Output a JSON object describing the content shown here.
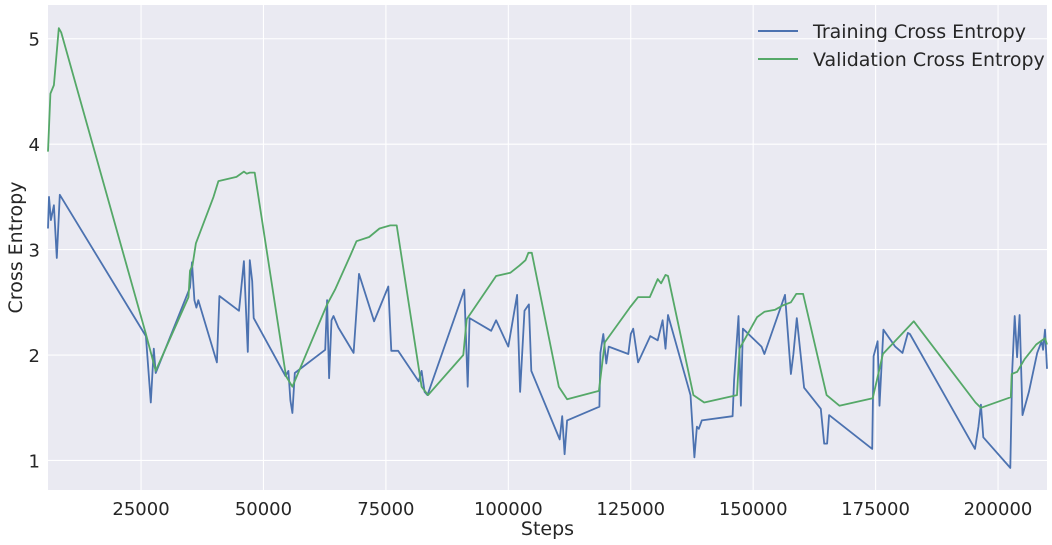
{
  "chart_data": {
    "type": "line",
    "title": "",
    "xlabel": "Steps",
    "ylabel": "Cross Entropy",
    "xlim": [
      6000,
      210000
    ],
    "ylim": [
      0.72,
      5.32
    ],
    "xticks": [
      25000,
      50000,
      75000,
      100000,
      125000,
      150000,
      175000,
      200000
    ],
    "yticks": [
      1,
      2,
      3,
      4,
      5
    ],
    "grid": true,
    "legend_position": "top-right",
    "colors": {
      "background": "#eaeaf2",
      "grid": "#ffffff"
    },
    "series": [
      {
        "name": "Training Cross Entropy",
        "color": "#4c72b0",
        "points": [
          [
            6000,
            3.2
          ],
          [
            6200,
            3.5
          ],
          [
            6600,
            3.28
          ],
          [
            7200,
            3.42
          ],
          [
            7800,
            2.92
          ],
          [
            8400,
            3.52
          ],
          [
            26000,
            2.18
          ],
          [
            27000,
            1.55
          ],
          [
            27600,
            2.06
          ],
          [
            28000,
            1.83
          ],
          [
            35000,
            2.64
          ],
          [
            35400,
            2.88
          ],
          [
            35900,
            2.52
          ],
          [
            36300,
            2.45
          ],
          [
            36700,
            2.52
          ],
          [
            40500,
            1.93
          ],
          [
            41000,
            2.56
          ],
          [
            45000,
            2.42
          ],
          [
            46000,
            2.89
          ],
          [
            46800,
            2.03
          ],
          [
            47200,
            2.9
          ],
          [
            47700,
            2.7
          ],
          [
            48000,
            2.35
          ],
          [
            54500,
            1.8
          ],
          [
            55100,
            1.85
          ],
          [
            55500,
            1.57
          ],
          [
            55900,
            1.45
          ],
          [
            56400,
            1.83
          ],
          [
            62600,
            2.05
          ],
          [
            63000,
            2.52
          ],
          [
            63400,
            1.78
          ],
          [
            63900,
            2.33
          ],
          [
            64300,
            2.37
          ],
          [
            65300,
            2.26
          ],
          [
            68400,
            2.02
          ],
          [
            69500,
            2.77
          ],
          [
            72600,
            2.32
          ],
          [
            75500,
            2.65
          ],
          [
            76100,
            2.04
          ],
          [
            77500,
            2.04
          ],
          [
            81700,
            1.75
          ],
          [
            82300,
            1.85
          ],
          [
            82900,
            1.65
          ],
          [
            83500,
            1.62
          ],
          [
            90500,
            2.55
          ],
          [
            91000,
            2.62
          ],
          [
            91700,
            1.7
          ],
          [
            92100,
            2.35
          ],
          [
            96500,
            2.23
          ],
          [
            97500,
            2.33
          ],
          [
            100000,
            2.08
          ],
          [
            101800,
            2.57
          ],
          [
            102400,
            1.65
          ],
          [
            103300,
            2.42
          ],
          [
            104200,
            2.48
          ],
          [
            104700,
            1.85
          ],
          [
            110500,
            1.2
          ],
          [
            111000,
            1.42
          ],
          [
            111500,
            1.06
          ],
          [
            112000,
            1.38
          ],
          [
            118600,
            1.51
          ],
          [
            118800,
            2.02
          ],
          [
            119400,
            2.2
          ],
          [
            120000,
            1.92
          ],
          [
            120500,
            2.08
          ],
          [
            124500,
            2.01
          ],
          [
            125000,
            2.2
          ],
          [
            125500,
            2.25
          ],
          [
            126500,
            1.93
          ],
          [
            129000,
            2.18
          ],
          [
            130500,
            2.14
          ],
          [
            131500,
            2.33
          ],
          [
            132100,
            2.06
          ],
          [
            132600,
            2.38
          ],
          [
            137200,
            1.62
          ],
          [
            138000,
            1.03
          ],
          [
            138500,
            1.32
          ],
          [
            138900,
            1.3
          ],
          [
            139500,
            1.38
          ],
          [
            145800,
            1.42
          ],
          [
            146100,
            1.76
          ],
          [
            147000,
            2.37
          ],
          [
            147500,
            1.52
          ],
          [
            147900,
            2.25
          ],
          [
            151700,
            2.08
          ],
          [
            152300,
            2.01
          ],
          [
            156500,
            2.57
          ],
          [
            157700,
            1.82
          ],
          [
            158200,
            2.0
          ],
          [
            158900,
            2.35
          ],
          [
            160400,
            1.69
          ],
          [
            163800,
            1.49
          ],
          [
            164500,
            1.16
          ],
          [
            165100,
            1.16
          ],
          [
            165500,
            1.43
          ],
          [
            174300,
            1.11
          ],
          [
            174600,
            1.99
          ],
          [
            175400,
            2.13
          ],
          [
            175800,
            1.52
          ],
          [
            176600,
            2.24
          ],
          [
            179000,
            2.08
          ],
          [
            180500,
            2.02
          ],
          [
            181600,
            2.21
          ],
          [
            182000,
            2.2
          ],
          [
            195300,
            1.11
          ],
          [
            196000,
            1.32
          ],
          [
            196500,
            1.53
          ],
          [
            197000,
            1.22
          ],
          [
            202500,
            0.93
          ],
          [
            202900,
            1.85
          ],
          [
            203400,
            2.37
          ],
          [
            203900,
            1.98
          ],
          [
            204400,
            2.38
          ],
          [
            205000,
            1.43
          ],
          [
            206300,
            1.65
          ],
          [
            208000,
            2.02
          ],
          [
            208900,
            2.13
          ],
          [
            209200,
            2.05
          ],
          [
            209600,
            2.24
          ],
          [
            210000,
            1.87
          ]
        ]
      },
      {
        "name": "Validation Cross Entropy",
        "color": "#55a868",
        "points": [
          [
            6000,
            3.93
          ],
          [
            6500,
            4.48
          ],
          [
            7200,
            4.56
          ],
          [
            8200,
            5.1
          ],
          [
            8700,
            5.06
          ],
          [
            26000,
            2.2
          ],
          [
            28000,
            1.85
          ],
          [
            34700,
            2.55
          ],
          [
            35000,
            2.8
          ],
          [
            35500,
            2.85
          ],
          [
            36200,
            3.06
          ],
          [
            39800,
            3.5
          ],
          [
            40800,
            3.65
          ],
          [
            44500,
            3.69
          ],
          [
            46000,
            3.74
          ],
          [
            46600,
            3.72
          ],
          [
            47200,
            3.73
          ],
          [
            48200,
            3.73
          ],
          [
            54600,
            1.8
          ],
          [
            55900,
            1.7
          ],
          [
            63000,
            2.48
          ],
          [
            64600,
            2.62
          ],
          [
            67800,
            2.95
          ],
          [
            69000,
            3.08
          ],
          [
            71600,
            3.12
          ],
          [
            73700,
            3.2
          ],
          [
            75900,
            3.23
          ],
          [
            77200,
            3.23
          ],
          [
            82300,
            1.7
          ],
          [
            83600,
            1.62
          ],
          [
            90800,
            2.0
          ],
          [
            91500,
            2.34
          ],
          [
            97500,
            2.75
          ],
          [
            100400,
            2.78
          ],
          [
            102300,
            2.85
          ],
          [
            103500,
            2.9
          ],
          [
            104100,
            2.97
          ],
          [
            104800,
            2.97
          ],
          [
            110300,
            1.7
          ],
          [
            112000,
            1.58
          ],
          [
            118500,
            1.66
          ],
          [
            119700,
            2.12
          ],
          [
            124800,
            2.45
          ],
          [
            126500,
            2.55
          ],
          [
            128900,
            2.55
          ],
          [
            130500,
            2.72
          ],
          [
            131200,
            2.68
          ],
          [
            132100,
            2.76
          ],
          [
            132600,
            2.75
          ],
          [
            137800,
            1.62
          ],
          [
            140000,
            1.55
          ],
          [
            146700,
            1.62
          ],
          [
            147200,
            2.06
          ],
          [
            150800,
            2.36
          ],
          [
            152300,
            2.41
          ],
          [
            154500,
            2.43
          ],
          [
            156000,
            2.47
          ],
          [
            157700,
            2.5
          ],
          [
            158800,
            2.58
          ],
          [
            160200,
            2.58
          ],
          [
            165000,
            1.62
          ],
          [
            167600,
            1.52
          ],
          [
            174400,
            1.59
          ],
          [
            176500,
            2.01
          ],
          [
            182800,
            2.32
          ],
          [
            195400,
            1.55
          ],
          [
            196500,
            1.5
          ],
          [
            202600,
            1.6
          ],
          [
            202800,
            1.82
          ],
          [
            203900,
            1.84
          ],
          [
            205400,
            1.96
          ],
          [
            207800,
            2.1
          ],
          [
            209600,
            2.16
          ],
          [
            210000,
            2.1
          ]
        ]
      }
    ]
  }
}
